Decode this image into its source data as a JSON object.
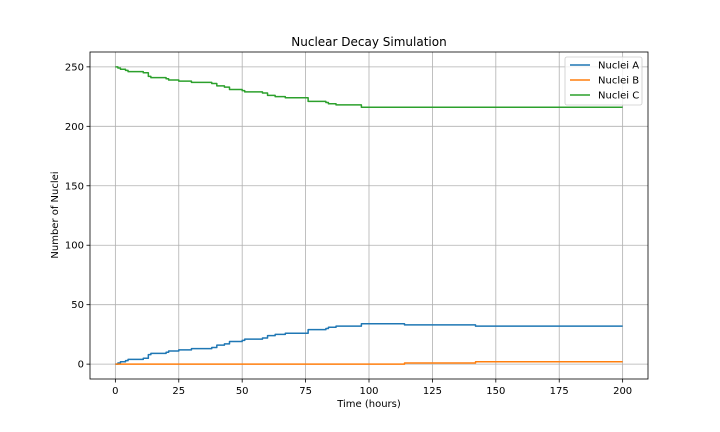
{
  "chart_data": {
    "type": "line",
    "title": "Nuclear Decay Simulation",
    "xlabel": "Time (hours)",
    "ylabel": "Number of Nuclei",
    "xlim": [
      -10,
      210
    ],
    "ylim": [
      -12.5,
      262.5
    ],
    "xticks": [
      0,
      25,
      50,
      75,
      100,
      125,
      150,
      175,
      200
    ],
    "yticks": [
      0,
      50,
      100,
      150,
      200,
      250
    ],
    "grid": true,
    "legend_position": "top-right",
    "step": true,
    "series": [
      {
        "name": "Nuclei A",
        "color": "#1f77b4",
        "points": [
          [
            0,
            0
          ],
          [
            1,
            1
          ],
          [
            2,
            2
          ],
          [
            4,
            3
          ],
          [
            5,
            4
          ],
          [
            11,
            5
          ],
          [
            13,
            8
          ],
          [
            14,
            9
          ],
          [
            20,
            10
          ],
          [
            21,
            11
          ],
          [
            25,
            12
          ],
          [
            30,
            13
          ],
          [
            38,
            14
          ],
          [
            40,
            16
          ],
          [
            43,
            17
          ],
          [
            45,
            19
          ],
          [
            50,
            20
          ],
          [
            51,
            21
          ],
          [
            58,
            22
          ],
          [
            60,
            24
          ],
          [
            63,
            25
          ],
          [
            67,
            26
          ],
          [
            76,
            29
          ],
          [
            83,
            30
          ],
          [
            84,
            31
          ],
          [
            87,
            32
          ],
          [
            97,
            34
          ],
          [
            114,
            33
          ],
          [
            142,
            32
          ],
          [
            200,
            32
          ]
        ]
      },
      {
        "name": "Nuclei B",
        "color": "#ff7f0e",
        "points": [
          [
            0,
            0
          ],
          [
            114,
            1
          ],
          [
            142,
            2
          ],
          [
            200,
            2
          ]
        ]
      },
      {
        "name": "Nuclei C",
        "color": "#2ca02c",
        "points": [
          [
            0,
            250
          ],
          [
            1,
            249
          ],
          [
            2,
            248
          ],
          [
            4,
            247
          ],
          [
            5,
            246
          ],
          [
            11,
            245
          ],
          [
            13,
            242
          ],
          [
            14,
            241
          ],
          [
            20,
            240
          ],
          [
            21,
            239
          ],
          [
            25,
            238
          ],
          [
            30,
            237
          ],
          [
            38,
            236
          ],
          [
            40,
            234
          ],
          [
            43,
            233
          ],
          [
            45,
            231
          ],
          [
            50,
            230
          ],
          [
            51,
            229
          ],
          [
            58,
            228
          ],
          [
            60,
            226
          ],
          [
            63,
            225
          ],
          [
            67,
            224
          ],
          [
            76,
            221
          ],
          [
            83,
            220
          ],
          [
            84,
            219
          ],
          [
            87,
            218
          ],
          [
            97,
            216
          ],
          [
            200,
            216
          ]
        ]
      }
    ]
  }
}
